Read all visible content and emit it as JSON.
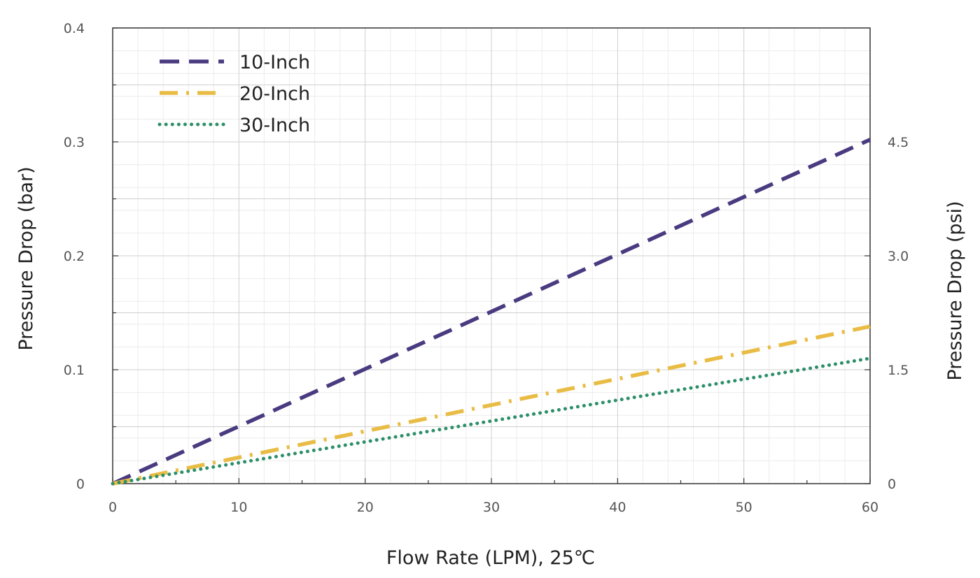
{
  "chart_data": {
    "type": "line",
    "xlabel": "Flow Rate (LPM), 25℃",
    "ylabel": "Pressure Drop (bar)",
    "y2label": "Pressure Drop (psi)",
    "xlim": [
      0,
      60
    ],
    "ylim": [
      0,
      0.4
    ],
    "y2lim": [
      0,
      6
    ],
    "x_ticks": [
      0,
      10,
      20,
      30,
      40,
      50,
      60
    ],
    "x_tick_labels": [
      "0",
      "10",
      "20",
      "30",
      "40",
      "50",
      "60"
    ],
    "y_ticks": [
      0,
      0.1,
      0.2,
      0.3,
      0.4
    ],
    "y_tick_labels": [
      "0",
      "0.1",
      "0.2",
      "0.3",
      "0.4"
    ],
    "y2_ticks": [
      0,
      1.5,
      3.0,
      4.5
    ],
    "y2_tick_labels": [
      "0",
      "1.5",
      "3.0",
      "4.5"
    ],
    "grid": true,
    "legend_position": "top-left",
    "series": [
      {
        "name": "10-Inch",
        "style": "dashed",
        "color": "#4a3a80",
        "x": [
          0,
          60
        ],
        "y": [
          0,
          0.302
        ]
      },
      {
        "name": "20-Inch",
        "style": "dash-dot",
        "color": "#e8bc45",
        "x": [
          0,
          60
        ],
        "y": [
          0,
          0.138
        ]
      },
      {
        "name": "30-Inch",
        "style": "dotted",
        "color": "#2e8f6a",
        "x": [
          0,
          60
        ],
        "y": [
          0,
          0.11
        ]
      }
    ]
  }
}
